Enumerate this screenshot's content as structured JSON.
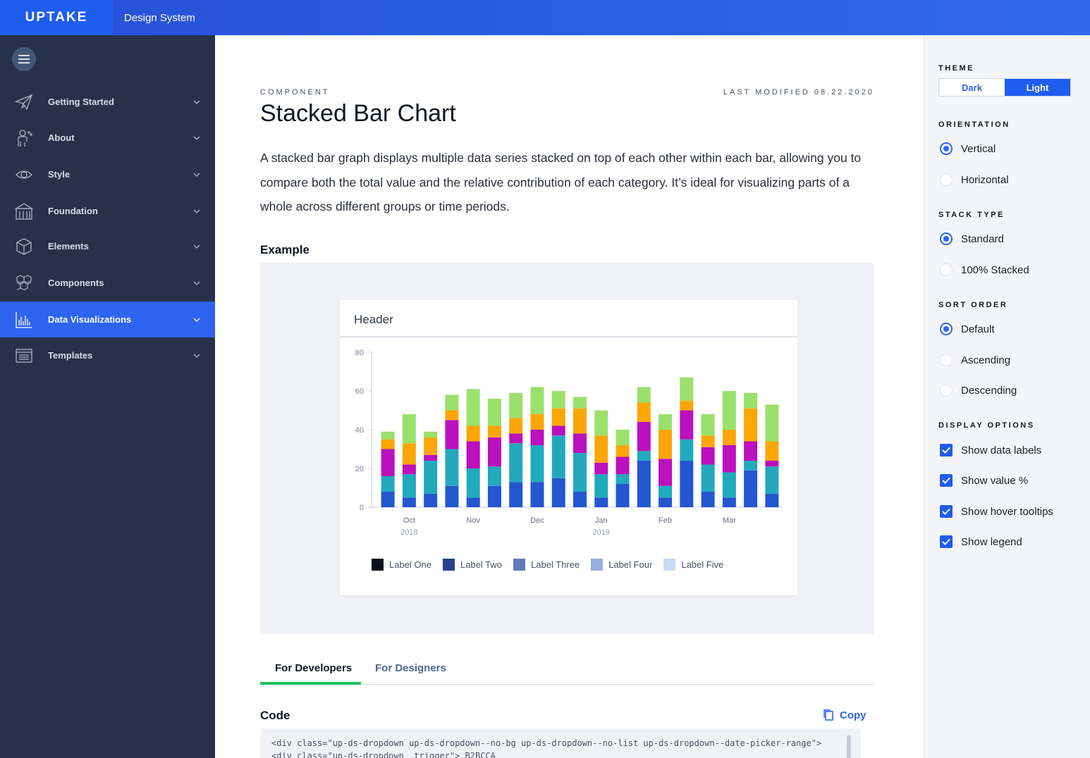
{
  "header": {
    "brand": "UPTAKE",
    "app_title": "Design System"
  },
  "sidebar": {
    "items": [
      {
        "label": "Getting Started",
        "icon": "paper-plane-icon",
        "active": false
      },
      {
        "label": "About",
        "icon": "person-icon",
        "active": false
      },
      {
        "label": "Style",
        "icon": "eye-icon",
        "active": false
      },
      {
        "label": "Foundation",
        "icon": "building-icon",
        "active": false
      },
      {
        "label": "Elements",
        "icon": "cube-icon",
        "active": false
      },
      {
        "label": "Components",
        "icon": "cubes-icon",
        "active": false
      },
      {
        "label": "Data Visualizations",
        "icon": "bar-chart-icon",
        "active": true
      },
      {
        "label": "Templates",
        "icon": "template-icon",
        "active": false
      }
    ]
  },
  "page": {
    "eyebrow": "COMPONENT",
    "last_modified": "LAST MODIFIED 08.22.2020",
    "title": "Stacked Bar Chart",
    "description": "A stacked bar graph displays multiple data series stacked on top of each other within each bar, allowing you to compare both the total value and the relative contribution of each category. It’s ideal for visualizing parts of a whole across different groups or time periods.",
    "example_heading": "Example",
    "card_header": "Header",
    "tabs": [
      "For Developers",
      "For Designers"
    ],
    "code_heading": "Code",
    "copy_label": "Copy",
    "code_line_1": "<div class=\"up-ds-dropdown up-ds-dropdown--no-bg up-ds-dropdown--no-list up-ds-dropdown--date-picker-range\">",
    "code_line_2": "  <div class=\"up-ds-dropdown__trigger\">                                          B2BCCA"
  },
  "right_panel": {
    "theme_heading": "THEME",
    "theme_options": [
      "Dark",
      "Light"
    ],
    "theme_selected": "Light",
    "orientation_heading": "ORIENTATION",
    "orientation_options": [
      "Vertical",
      "Horizontal"
    ],
    "stack_type_heading": "STACK TYPE",
    "stack_type_options": [
      "Standard",
      "100% Stacked"
    ],
    "sort_order_heading": "SORT ORDER",
    "sort_order_options": [
      "Default",
      "Ascending",
      "Descending"
    ],
    "display_options_heading": "DISPLAY OPTIONS",
    "display_options": [
      "Show data labels",
      "Show value %",
      "Show hover tooltips",
      "Show legend"
    ]
  },
  "colors": {
    "accent": "#2e64f0",
    "sidebar": "#27324a",
    "tab_indicator": "#1fbf5f"
  },
  "chart_data": {
    "type": "bar",
    "stacked": true,
    "ylim": [
      0,
      80
    ],
    "yticks": [
      0,
      20,
      40,
      60,
      80
    ],
    "x_tick_labels": [
      {
        "index": 1,
        "month": "Oct",
        "year": "2018"
      },
      {
        "index": 4,
        "month": "Nov",
        "year": ""
      },
      {
        "index": 7,
        "month": "Dec",
        "year": ""
      },
      {
        "index": 10,
        "month": "Jan",
        "year": "2019"
      },
      {
        "index": 13,
        "month": "Feb",
        "year": ""
      },
      {
        "index": 16,
        "month": "Mar",
        "year": ""
      }
    ],
    "segment_colors": [
      "#2456d0",
      "#22a9bd",
      "#bb10bd",
      "#fda607",
      "#9be06a"
    ],
    "series": [
      {
        "name": "seg1",
        "values": [
          8,
          5,
          7,
          11,
          5,
          11,
          13,
          13,
          15,
          8,
          5,
          12,
          24,
          5,
          24,
          8,
          5,
          19,
          7
        ]
      },
      {
        "name": "seg2",
        "values": [
          8,
          12,
          17,
          19,
          15,
          10,
          20,
          19,
          22,
          20,
          12,
          5,
          5,
          6,
          11,
          14,
          13,
          5,
          14
        ]
      },
      {
        "name": "seg3",
        "values": [
          14,
          5,
          3,
          15,
          14,
          15,
          5,
          8,
          5,
          10,
          6,
          9,
          15,
          14,
          15,
          9,
          14,
          10,
          3
        ]
      },
      {
        "name": "seg4",
        "values": [
          5,
          11,
          9,
          5,
          8,
          6,
          8,
          8,
          9,
          13,
          14,
          6,
          10,
          15,
          5,
          6,
          8,
          17,
          10
        ]
      },
      {
        "name": "seg5",
        "values": [
          4,
          15,
          3,
          8,
          19,
          14,
          13,
          14,
          9,
          6,
          13,
          8,
          8,
          8,
          12,
          11,
          20,
          8,
          19
        ]
      }
    ],
    "legend": [
      {
        "label": "Label One",
        "color": "#0b0f1a"
      },
      {
        "label": "Label Two",
        "color": "#2b3f8f"
      },
      {
        "label": "Label Three",
        "color": "#5f7cb8"
      },
      {
        "label": "Label Four",
        "color": "#96aedb"
      },
      {
        "label": "Label Five",
        "color": "#c9daf3"
      }
    ]
  }
}
